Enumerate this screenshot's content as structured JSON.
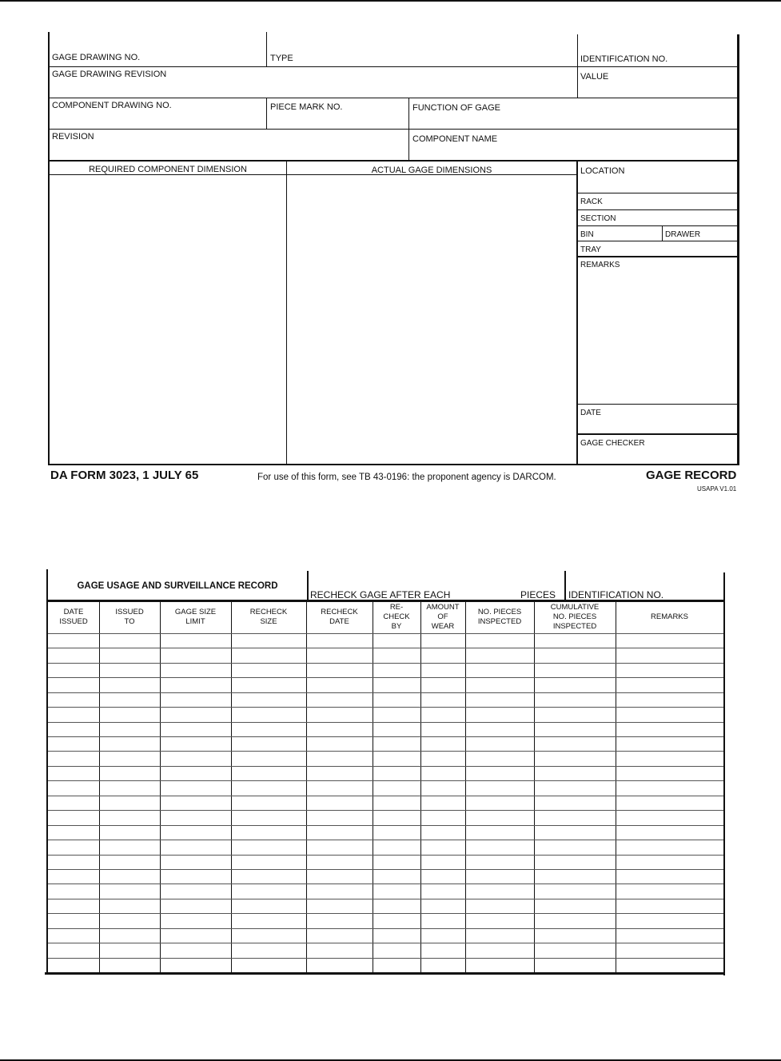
{
  "gage_record": {
    "gage_drawing_no": "GAGE DRAWING NO.",
    "type": "TYPE",
    "identification_no": "IDENTIFICATION NO.",
    "gage_drawing_revision": "GAGE DRAWING REVISION",
    "value": "VALUE",
    "component_drawing_no": "COMPONENT DRAWING NO.",
    "piece_mark_no": "PIECE MARK NO.",
    "function_of_gage": "FUNCTION OF GAGE",
    "revision": "REVISION",
    "component_name": "COMPONENT NAME",
    "required_component_dimension": "REQUIRED COMPONENT DIMENSION",
    "actual_gage_dimensions": "ACTUAL GAGE DIMENSIONS",
    "location": "LOCATION",
    "rack": "RACK",
    "section": "SECTION",
    "bin": "BIN",
    "drawer": "DRAWER",
    "tray": "TRAY",
    "remarks": "REMARKS",
    "date": "DATE",
    "gage_checker": "GAGE CHECKER"
  },
  "footer": {
    "form_id": "DA FORM 3023, 1 JULY 65",
    "instructions": "For use of this form, see TB 43-0196: the proponent agency is DARCOM.",
    "form_title": "GAGE RECORD",
    "version": "USAPA V1.01"
  },
  "usage_record": {
    "title": "GAGE USAGE AND SURVEILLANCE RECORD",
    "recheck_label": "RECHECK GAGE AFTER EACH",
    "pieces_label": "PIECES",
    "identification_no": "IDENTIFICATION NO.",
    "columns": [
      "DATE\nISSUED",
      "ISSUED\nTO",
      "GAGE SIZE\nLIMIT",
      "RECHECK\nSIZE",
      "RECHECK\nDATE",
      "RE-\nCHECK\nBY",
      "AMOUNT\nOF\nWEAR",
      "NO. PIECES\nINSPECTED",
      "CUMULATIVE\nNO. PIECES\nINSPECTED",
      "REMARKS"
    ]
  }
}
